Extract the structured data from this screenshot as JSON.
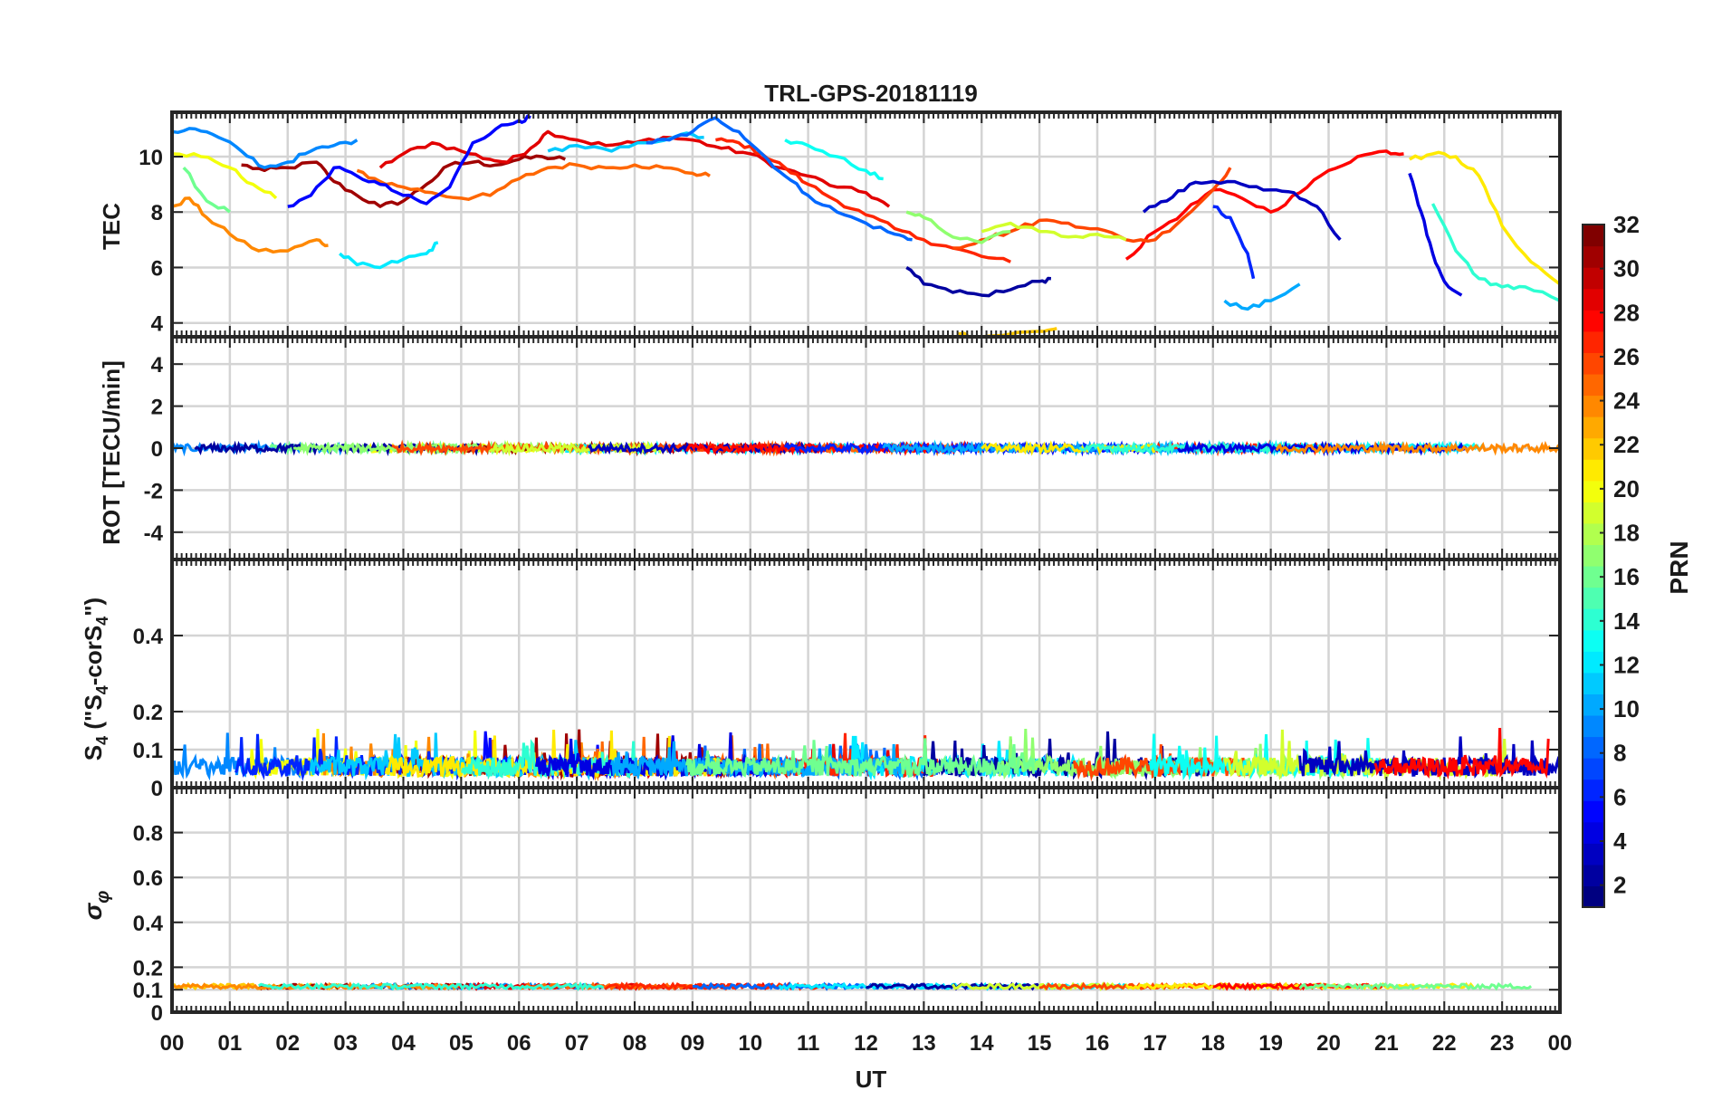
{
  "chart_data": {
    "type": "line",
    "title": "TRL-GPS-20181119",
    "xlabel": "UT",
    "x_ticks": [
      "00",
      "01",
      "02",
      "03",
      "04",
      "05",
      "06",
      "07",
      "08",
      "09",
      "10",
      "11",
      "12",
      "13",
      "14",
      "15",
      "16",
      "17",
      "18",
      "19",
      "20",
      "21",
      "22",
      "23",
      "00"
    ],
    "xlim_hours": [
      0,
      24
    ],
    "colorbar": {
      "label": "PRN",
      "range": [
        1,
        32
      ],
      "ticks": [
        "2",
        "4",
        "6",
        "8",
        "10",
        "12",
        "14",
        "16",
        "18",
        "20",
        "22",
        "24",
        "26",
        "28",
        "30",
        "32"
      ],
      "colormap": "jet"
    },
    "panels": [
      {
        "id": "tec",
        "ylabel": "TEC",
        "ylim": [
          3.5,
          11.6
        ],
        "yticks": [
          "4",
          "6",
          "8",
          "10"
        ],
        "series": [
          {
            "prn": 31,
            "x": [
              1.2,
              1.6,
              2.0,
              2.5,
              2.8,
              3.2,
              3.6,
              4.0,
              4.4,
              4.8,
              5.2,
              5.6,
              6.0,
              6.4,
              6.8
            ],
            "y": [
              9.7,
              9.5,
              9.6,
              9.8,
              9.1,
              8.6,
              8.2,
              8.4,
              9.0,
              9.7,
              9.8,
              9.7,
              9.9,
              10.0,
              9.9
            ]
          },
          {
            "prn": 29,
            "x": [
              3.6,
              4.0,
              4.5,
              5.0,
              5.5,
              5.8,
              6.2,
              6.5,
              7.0,
              7.5,
              8.0,
              8.5,
              9.0,
              9.5,
              10.0,
              10.5,
              11.0,
              11.5,
              12.0,
              12.4
            ],
            "y": [
              9.6,
              10.1,
              10.5,
              10.2,
              9.9,
              9.8,
              10.3,
              10.9,
              10.6,
              10.4,
              10.5,
              10.7,
              10.6,
              10.3,
              10.1,
              9.6,
              9.3,
              8.9,
              8.7,
              8.2
            ]
          },
          {
            "prn": 27,
            "x": [
              9.4,
              9.8,
              10.2,
              10.6,
              11.0,
              11.5,
              12.0,
              12.5,
              13.0,
              13.5,
              14.0,
              14.5
            ],
            "y": [
              10.6,
              10.5,
              10.1,
              9.6,
              9.0,
              8.4,
              7.9,
              7.4,
              7.0,
              6.7,
              6.4,
              6.2
            ]
          },
          {
            "prn": 25,
            "x": [
              3.2,
              3.6,
              4.0,
              4.5,
              5.0,
              5.5,
              6.0,
              6.5,
              7.0,
              7.5,
              8.0,
              8.5,
              9.0,
              9.3
            ],
            "y": [
              9.5,
              9.1,
              8.9,
              8.7,
              8.5,
              8.6,
              9.2,
              9.6,
              9.7,
              9.6,
              9.7,
              9.6,
              9.4,
              9.3
            ]
          },
          {
            "prn": 24,
            "x": [
              0.0,
              0.3,
              0.6,
              1.0,
              1.5,
              2.0,
              2.5,
              2.7
            ],
            "y": [
              8.2,
              8.5,
              7.8,
              7.2,
              6.6,
              6.6,
              7.0,
              6.8
            ]
          },
          {
            "prn": 22,
            "x": [
              13.6,
              14.0,
              14.5,
              15.0,
              15.3
            ],
            "y": [
              3.6,
              3.5,
              3.6,
              3.7,
              3.8
            ]
          },
          {
            "prn": 20,
            "x": [
              0.0,
              0.5,
              1.0,
              1.4,
              1.8
            ],
            "y": [
              10.1,
              10.0,
              9.6,
              9.0,
              8.5
            ]
          },
          {
            "prn": 16,
            "x": [
              0.2,
              0.6,
              1.0
            ],
            "y": [
              9.6,
              8.4,
              8.0
            ]
          },
          {
            "prn": 12,
            "x": [
              2.9,
              3.2,
              3.6,
              4.0,
              4.4,
              4.6
            ],
            "y": [
              6.5,
              6.1,
              6.0,
              6.3,
              6.5,
              6.9
            ]
          },
          {
            "prn": 11,
            "x": [
              6.5,
              7.0,
              7.6,
              8.2,
              8.8,
              9.2
            ],
            "y": [
              10.2,
              10.4,
              10.2,
              10.5,
              10.8,
              10.7
            ]
          },
          {
            "prn": 8,
            "x": [
              8.2,
              8.6,
              9.0,
              9.4,
              9.8,
              10.2,
              10.6,
              11.0,
              11.5,
              12.0,
              12.5,
              12.8
            ],
            "y": [
              10.5,
              10.6,
              10.9,
              11.4,
              10.9,
              10.1,
              9.3,
              8.6,
              8.0,
              7.6,
              7.2,
              7.0
            ]
          },
          {
            "prn": 5,
            "x": [
              2.0,
              2.4,
              2.8,
              3.2,
              3.6,
              4.0,
              4.4,
              4.8,
              5.2,
              5.6,
              6.0,
              6.2
            ],
            "y": [
              8.2,
              8.6,
              9.6,
              9.3,
              9.0,
              8.6,
              8.3,
              8.9,
              10.5,
              11.0,
              11.3,
              11.4
            ]
          },
          {
            "prn": 2,
            "x": [
              12.7,
              13.0,
              13.5,
              14.0,
              14.5,
              15.0,
              15.2
            ],
            "y": [
              6.0,
              5.4,
              5.1,
              5.0,
              5.2,
              5.5,
              5.6
            ]
          },
          {
            "prn": 28,
            "x": [
              16.5,
              17.0,
              17.5,
              18.0,
              18.5,
              19.0,
              19.5,
              20.0,
              20.5,
              21.0,
              21.3
            ],
            "y": [
              6.3,
              7.3,
              8.0,
              8.8,
              8.5,
              8.0,
              8.7,
              9.5,
              10.0,
              10.2,
              10.1
            ]
          },
          {
            "prn": 26,
            "x": [
              13.5,
              14.0,
              14.5,
              15.0,
              15.5,
              16.0,
              16.5,
              17.0,
              17.5,
              18.0,
              18.3
            ],
            "y": [
              6.7,
              7.0,
              7.3,
              7.7,
              7.6,
              7.4,
              7.0,
              7.0,
              7.8,
              8.8,
              9.6
            ]
          },
          {
            "prn": 21,
            "x": [
              21.4,
              21.8,
              22.2,
              22.6,
              23.0,
              23.5,
              24.0
            ],
            "y": [
              9.9,
              10.1,
              10.0,
              9.3,
              7.5,
              6.2,
              5.4
            ]
          },
          {
            "prn": 19,
            "x": [
              14.0,
              14.5,
              15.0,
              15.5,
              16.0,
              16.5
            ],
            "y": [
              7.3,
              7.6,
              7.3,
              7.1,
              7.2,
              7.0
            ]
          },
          {
            "prn": 17,
            "x": [
              12.7,
              13.0,
              13.5,
              14.0,
              14.5
            ],
            "y": [
              8.0,
              7.8,
              7.1,
              6.9,
              7.3
            ]
          },
          {
            "prn": 13,
            "x": [
              10.6,
              11.0,
              11.5,
              12.0,
              12.3
            ],
            "y": [
              10.6,
              10.4,
              10.0,
              9.5,
              9.2
            ]
          },
          {
            "prn": 10,
            "x": [
              18.2,
              18.6,
              19.0,
              19.5
            ],
            "y": [
              4.8,
              4.5,
              4.8,
              5.4
            ]
          },
          {
            "prn": 9,
            "x": [
              0.0,
              0.4,
              0.8,
              1.2,
              1.6,
              2.0,
              2.4,
              2.8,
              3.2
            ],
            "y": [
              10.9,
              11.0,
              10.7,
              10.2,
              9.6,
              9.8,
              10.2,
              10.4,
              10.6
            ]
          },
          {
            "prn": 6,
            "x": [
              18.0,
              18.3,
              18.6,
              18.7
            ],
            "y": [
              8.2,
              7.8,
              6.5,
              5.6
            ]
          },
          {
            "prn": 4,
            "x": [
              21.4,
              21.6,
              21.8,
              22.0,
              22.3
            ],
            "y": [
              9.4,
              8.0,
              6.5,
              5.5,
              5.0
            ]
          },
          {
            "prn": 3,
            "x": [
              16.8,
              17.2,
              17.6,
              18.0,
              18.5,
              19.0,
              19.4,
              19.8,
              20.2
            ],
            "y": [
              8.0,
              8.4,
              9.0,
              9.1,
              9.0,
              8.8,
              8.7,
              8.2,
              7.0
            ]
          },
          {
            "prn": 14,
            "x": [
              21.8,
              22.2,
              22.6,
              23.0,
              23.4,
              24.0
            ],
            "y": [
              8.3,
              6.6,
              5.6,
              5.3,
              5.3,
              4.8
            ]
          }
        ]
      },
      {
        "id": "rot",
        "ylabel": "ROT [TECU/min]",
        "ylim": [
          -5.3,
          5.3
        ],
        "yticks": [
          "-4",
          "-2",
          "0",
          "2",
          "4"
        ]
      },
      {
        "id": "s4",
        "ylabel": "S4 (\"S4-corS4\")",
        "ylabel_text": "S",
        "ylabel_sub": "4",
        "ylabel_paren": " (\"S",
        "ylabel_mid": "-corS",
        "ylabel_end": "\")",
        "ylim": [
          0,
          0.6
        ],
        "yticks": [
          "0",
          "0.1",
          "0.2",
          "0.4"
        ]
      },
      {
        "id": "sigma",
        "ylabel": "σφ",
        "ylabel_sigma": "σ",
        "ylabel_phi": "φ",
        "ylim": [
          0,
          1.0
        ],
        "yticks": [
          "0",
          "0.1",
          "0.2",
          "0.4",
          "0.6",
          "0.8"
        ]
      }
    ]
  }
}
